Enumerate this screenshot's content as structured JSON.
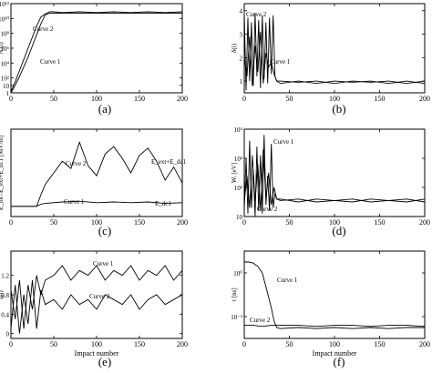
{
  "figure": {
    "xlabel_common": "Impact number",
    "panels": [
      {
        "id": "a",
        "label": "(a)",
        "ylabel": "Nₑ(i)",
        "yscale": "log",
        "xticks": [
          "0",
          "50",
          "100",
          "150",
          "200"
        ],
        "yticks": [
          "1",
          "10",
          "10²",
          "10⁴",
          "10⁶",
          "10⁸",
          "10¹⁰",
          "10¹²"
        ],
        "xlabel": "",
        "curve_labels": [
          "Curve 2",
          "Curve 1"
        ]
      },
      {
        "id": "b",
        "label": "(b)",
        "ylabel": "δ(i)",
        "yscale": "linear",
        "xticks": [
          "0",
          "50",
          "100",
          "150",
          "200"
        ],
        "yticks": [
          "1",
          "2",
          "3",
          "4"
        ],
        "xlabel": "",
        "curve_labels": [
          "Curve 2",
          "Curve 1"
        ]
      },
      {
        "id": "c",
        "label": "(c)",
        "ylabel": "E_tot=E_ext+E_dc1 [MV/m]",
        "yscale": "linear",
        "xticks": [
          "0",
          "50",
          "100",
          "150",
          "200"
        ],
        "yticks": [],
        "xlabel": "",
        "curve_labels": [
          "Curve 2",
          "Curve 1"
        ],
        "annotations": [
          "E_ext+E_dc1",
          "E_dc1"
        ]
      },
      {
        "id": "d",
        "label": "(d)",
        "ylabel": "Wᵢ [eV]",
        "yscale": "log",
        "xticks": [
          "0",
          "50",
          "100",
          "150",
          "200"
        ],
        "yticks": [
          "10",
          "10²",
          "10³",
          "10⁴"
        ],
        "xlabel": "",
        "curve_labels": [
          "Curve 1",
          "Curve 2"
        ]
      },
      {
        "id": "e",
        "label": "(e)",
        "ylabel": "ζ(i)",
        "yscale": "linear",
        "xticks": [
          "0",
          "50",
          "100",
          "150",
          "200"
        ],
        "yticks": [
          "0",
          "0.4",
          "0.8",
          "1.2"
        ],
        "xlabel": "Impact number",
        "curve_labels": [
          "Curve 1",
          "Curve 2"
        ]
      },
      {
        "id": "f",
        "label": "(f)",
        "ylabel": "τ [ns]",
        "yscale": "log",
        "xticks": [
          "0",
          "50",
          "100",
          "150",
          "200"
        ],
        "yticks": [
          "10⁻²",
          "10⁰"
        ],
        "xlabel": "Impact number",
        "curve_labels": [
          "Curve 1",
          "Curve 2"
        ]
      }
    ]
  },
  "chart_data": [
    {
      "type": "line",
      "panel": "a",
      "xlim": [
        0,
        200
      ],
      "ylim_log10": [
        0,
        12
      ],
      "series": [
        {
          "name": "Curve 2",
          "x": [
            0,
            5,
            10,
            15,
            20,
            25,
            30,
            35,
            40,
            45,
            50,
            60,
            80,
            100,
            120,
            140,
            160,
            180,
            200
          ],
          "log10_y": [
            0.2,
            1.5,
            3,
            4.5,
            6,
            7.5,
            9,
            10.2,
            10.6,
            10.9,
            10.9,
            10.8,
            10.9,
            10.8,
            10.9,
            10.8,
            10.9,
            10.8,
            10.9
          ]
        },
        {
          "name": "Curve 1",
          "x": [
            0,
            5,
            10,
            15,
            20,
            25,
            30,
            35,
            40,
            45,
            50,
            60,
            80,
            100,
            120,
            140,
            160,
            180,
            200
          ],
          "log10_y": [
            0.0,
            1.0,
            2.2,
            3.5,
            4.8,
            6.3,
            7.8,
            9.3,
            10.5,
            10.7,
            10.7,
            10.7,
            10.7,
            10.7,
            10.7,
            10.7,
            10.7,
            10.7,
            10.7
          ]
        }
      ]
    },
    {
      "type": "line",
      "panel": "b",
      "xlim": [
        0,
        200
      ],
      "ylim": [
        0.5,
        4.3
      ],
      "series": [
        {
          "name": "Curve 2",
          "x": [
            0,
            2,
            4,
            6,
            8,
            10,
            12,
            14,
            16,
            18,
            20,
            22,
            24,
            26,
            28,
            30,
            32,
            34,
            36,
            40,
            60,
            80,
            100,
            120,
            140,
            160,
            180,
            200
          ],
          "values": [
            3.9,
            0.6,
            3.7,
            1.0,
            3.5,
            0.8,
            3.9,
            1.2,
            3.6,
            0.7,
            3.8,
            1.1,
            3.5,
            0.9,
            3.7,
            1.3,
            3.8,
            1.2,
            1.0,
            0.9,
            1.0,
            0.9,
            1.0,
            0.95,
            1.0,
            0.9,
            1.0,
            0.9
          ]
        },
        {
          "name": "Curve 1",
          "x": [
            0,
            3,
            6,
            9,
            12,
            15,
            18,
            21,
            24,
            27,
            30,
            33,
            36,
            40,
            60,
            80,
            100,
            120,
            140,
            160,
            180,
            200
          ],
          "values": [
            2.0,
            1.2,
            2.9,
            0.8,
            2.5,
            1.4,
            3.1,
            0.9,
            2.2,
            1.6,
            1.8,
            1.3,
            1.0,
            1.0,
            0.95,
            1.0,
            0.9,
            1.0,
            0.95,
            1.0,
            0.9,
            1.0
          ]
        }
      ]
    },
    {
      "type": "line",
      "panel": "c",
      "xlim": [
        0,
        200
      ],
      "series": [
        {
          "name": "Curve 2",
          "x": [
            0,
            30,
            35,
            40,
            50,
            60,
            70,
            80,
            90,
            100,
            110,
            120,
            130,
            140,
            150,
            160,
            170,
            180,
            190,
            200
          ],
          "values": [
            0.7,
            0.7,
            1.5,
            2.2,
            3.0,
            3.8,
            3.3,
            5.1,
            3.5,
            2.8,
            4.3,
            4.8,
            4.0,
            3.0,
            4.2,
            4.7,
            3.8,
            2.5,
            3.4,
            2.3
          ]
        },
        {
          "name": "Curve 1",
          "x": [
            0,
            30,
            35,
            40,
            60,
            80,
            100,
            120,
            140,
            160,
            180,
            200
          ],
          "values": [
            0.7,
            0.7,
            0.85,
            0.9,
            1.0,
            1.05,
            0.95,
            1.0,
            0.95,
            1.0,
            0.9,
            0.95
          ]
        }
      ]
    },
    {
      "type": "line",
      "panel": "d",
      "xlim": [
        0,
        200
      ],
      "ylim_log10": [
        1,
        4
      ],
      "series": [
        {
          "name": "Curve 1",
          "x": [
            0,
            3,
            6,
            9,
            12,
            15,
            18,
            21,
            24,
            27,
            30,
            33,
            36,
            40,
            60,
            80,
            100,
            120,
            140,
            160,
            180,
            200
          ],
          "log10_y": [
            1.5,
            2.4,
            1.3,
            3.1,
            1.5,
            2.8,
            1.2,
            3.3,
            1.6,
            2.5,
            1.4,
            2.0,
            1.6,
            1.55,
            1.6,
            1.5,
            1.55,
            1.6,
            1.5,
            1.55,
            1.6,
            1.5
          ]
        },
        {
          "name": "Curve 2",
          "x": [
            0,
            2,
            4,
            6,
            8,
            10,
            12,
            14,
            16,
            18,
            20,
            22,
            24,
            26,
            28,
            30,
            32,
            34,
            36,
            40,
            60,
            80,
            100,
            120,
            140,
            160,
            180,
            200
          ],
          "log10_y": [
            1.2,
            3.0,
            1.1,
            3.6,
            1.3,
            2.6,
            1.0,
            3.4,
            1.2,
            3.1,
            1.1,
            3.8,
            1.4,
            2.4,
            1.2,
            3.5,
            1.3,
            1.8,
            1.6,
            1.6,
            1.5,
            1.6,
            1.55,
            1.5,
            1.6,
            1.55,
            1.5,
            1.6
          ]
        }
      ]
    },
    {
      "type": "line",
      "panel": "e",
      "xlim": [
        0,
        200
      ],
      "ylim": [
        -0.1,
        1.7
      ],
      "series": [
        {
          "name": "Curve 1",
          "x": [
            0,
            5,
            10,
            15,
            20,
            25,
            30,
            35,
            40,
            50,
            60,
            70,
            80,
            90,
            100,
            110,
            120,
            130,
            140,
            150,
            160,
            170,
            180,
            190,
            200
          ],
          "values": [
            0.9,
            0.3,
            1.1,
            0.1,
            1.0,
            0.5,
            1.2,
            0.8,
            1.1,
            1.2,
            1.4,
            1.1,
            1.3,
            1.2,
            1.4,
            1.1,
            1.3,
            1.2,
            1.4,
            1.1,
            1.3,
            1.2,
            1.4,
            1.1,
            1.3
          ]
        },
        {
          "name": "Curve 2",
          "x": [
            0,
            5,
            10,
            15,
            20,
            25,
            30,
            35,
            40,
            50,
            60,
            70,
            80,
            90,
            100,
            110,
            120,
            130,
            140,
            150,
            160,
            170,
            180,
            190,
            200
          ],
          "values": [
            0.1,
            1.0,
            0.0,
            0.8,
            0.2,
            1.1,
            0.1,
            0.9,
            0.6,
            0.7,
            0.5,
            0.8,
            0.6,
            0.7,
            0.5,
            0.8,
            0.7,
            0.6,
            0.8,
            0.5,
            0.7,
            0.8,
            0.6,
            0.7,
            0.8
          ]
        }
      ]
    },
    {
      "type": "line",
      "panel": "f",
      "xlim": [
        0,
        200
      ],
      "ylim_log10": [
        -3,
        1
      ],
      "series": [
        {
          "name": "Curve 1",
          "x": [
            0,
            5,
            10,
            15,
            20,
            25,
            30,
            33,
            36,
            40,
            60,
            80,
            100,
            120,
            140,
            160,
            180,
            200
          ],
          "log10_y": [
            0.5,
            0.5,
            0.45,
            0.3,
            0.0,
            -0.8,
            -1.6,
            -2.2,
            -2.5,
            -2.55,
            -2.5,
            -2.55,
            -2.5,
            -2.55,
            -2.5,
            -2.55,
            -2.5,
            -2.5
          ]
        },
        {
          "name": "Curve 2",
          "x": [
            0,
            10,
            20,
            30,
            40,
            60,
            80,
            100,
            120,
            140,
            160,
            180,
            200
          ],
          "log10_y": [
            -2.4,
            -2.4,
            -2.45,
            -2.4,
            -2.4,
            -2.4,
            -2.45,
            -2.4,
            -2.4,
            -2.45,
            -2.4,
            -2.4,
            -2.45
          ]
        }
      ]
    }
  ]
}
